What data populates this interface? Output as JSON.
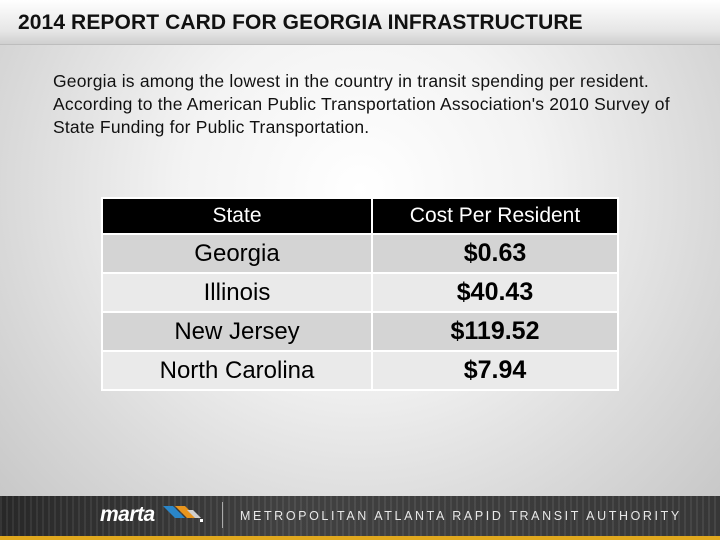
{
  "title": "2014 REPORT CARD FOR GEORGIA INFRASTRUCTURE",
  "intro": "Georgia is among the lowest in the country in transit spending per resident. According to the American Public Transportation Association's 2010 Survey of State Funding for Public Transportation.",
  "table": {
    "headers": [
      "State",
      "Cost Per Resident"
    ],
    "rows": [
      {
        "state": "Georgia",
        "cost": "$0.63"
      },
      {
        "state": "Illinois",
        "cost": "$40.43"
      },
      {
        "state": "New Jersey",
        "cost": "$119.52"
      },
      {
        "state": "North Carolina",
        "cost": "$7.94"
      }
    ]
  },
  "footer": {
    "logo": "marta",
    "org_name": "METROPOLITAN ATLANTA RAPID TRANSIT AUTHORITY"
  },
  "colors": {
    "header_bg": "#000000",
    "row_dark": "#d4d4d4",
    "row_light": "#eaeaea",
    "footer_bg": "#3a3a3a",
    "footer_gold": "#e0a81e",
    "logo_blue": "#2a86c9",
    "logo_orange": "#e8951e"
  }
}
